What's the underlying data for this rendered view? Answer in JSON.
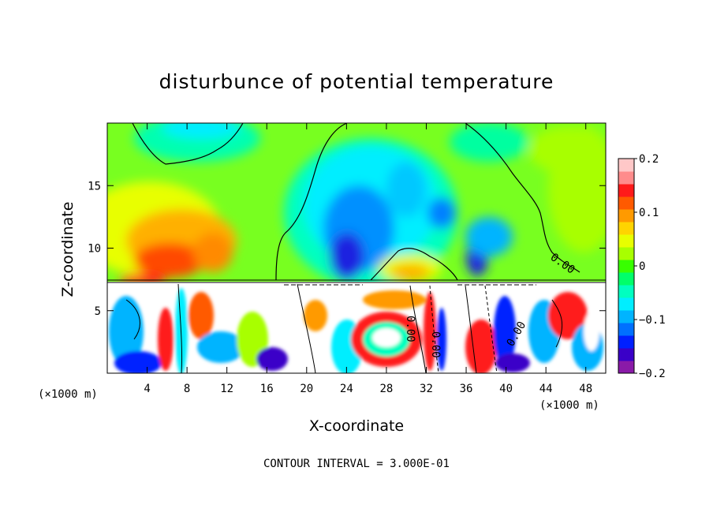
{
  "chart_data": {
    "type": "heatmap",
    "title": "disturbunce of potential temperature",
    "xlabel": "X-coordinate",
    "ylabel": "Z-coordinate",
    "x_unit": "(×1000 m)",
    "y_unit": "(×1000 m)",
    "xlim": [
      0,
      50
    ],
    "ylim": [
      0,
      20
    ],
    "x_ticks": [
      4,
      8,
      12,
      16,
      20,
      24,
      28,
      32,
      36,
      40,
      44,
      48
    ],
    "y_ticks": [
      5,
      10,
      15
    ],
    "colorbar": {
      "range": [
        -0.2,
        0.2
      ],
      "tick_values": [
        0.2,
        0.1,
        0,
        -0.1,
        -0.2
      ],
      "tick_labels": [
        "0.2",
        "0.1",
        "0",
        "−0.1",
        "−0.2"
      ],
      "colors": [
        "#8a1aa8",
        "#3a00c8",
        "#0020ff",
        "#0070ff",
        "#00b4ff",
        "#00eeff",
        "#00ffc0",
        "#00ff6a",
        "#38ff00",
        "#a8ff00",
        "#e8ff00",
        "#ffd400",
        "#ff9a00",
        "#ff5a00",
        "#ff1a1a",
        "#ff8c8c",
        "#ffc8c8"
      ]
    },
    "contour_labels": [
      "0.00",
      "0.00",
      "0.00",
      "0.00"
    ],
    "contour_interval_text": "CONTOUR INTERVAL =  3.000E-01"
  }
}
